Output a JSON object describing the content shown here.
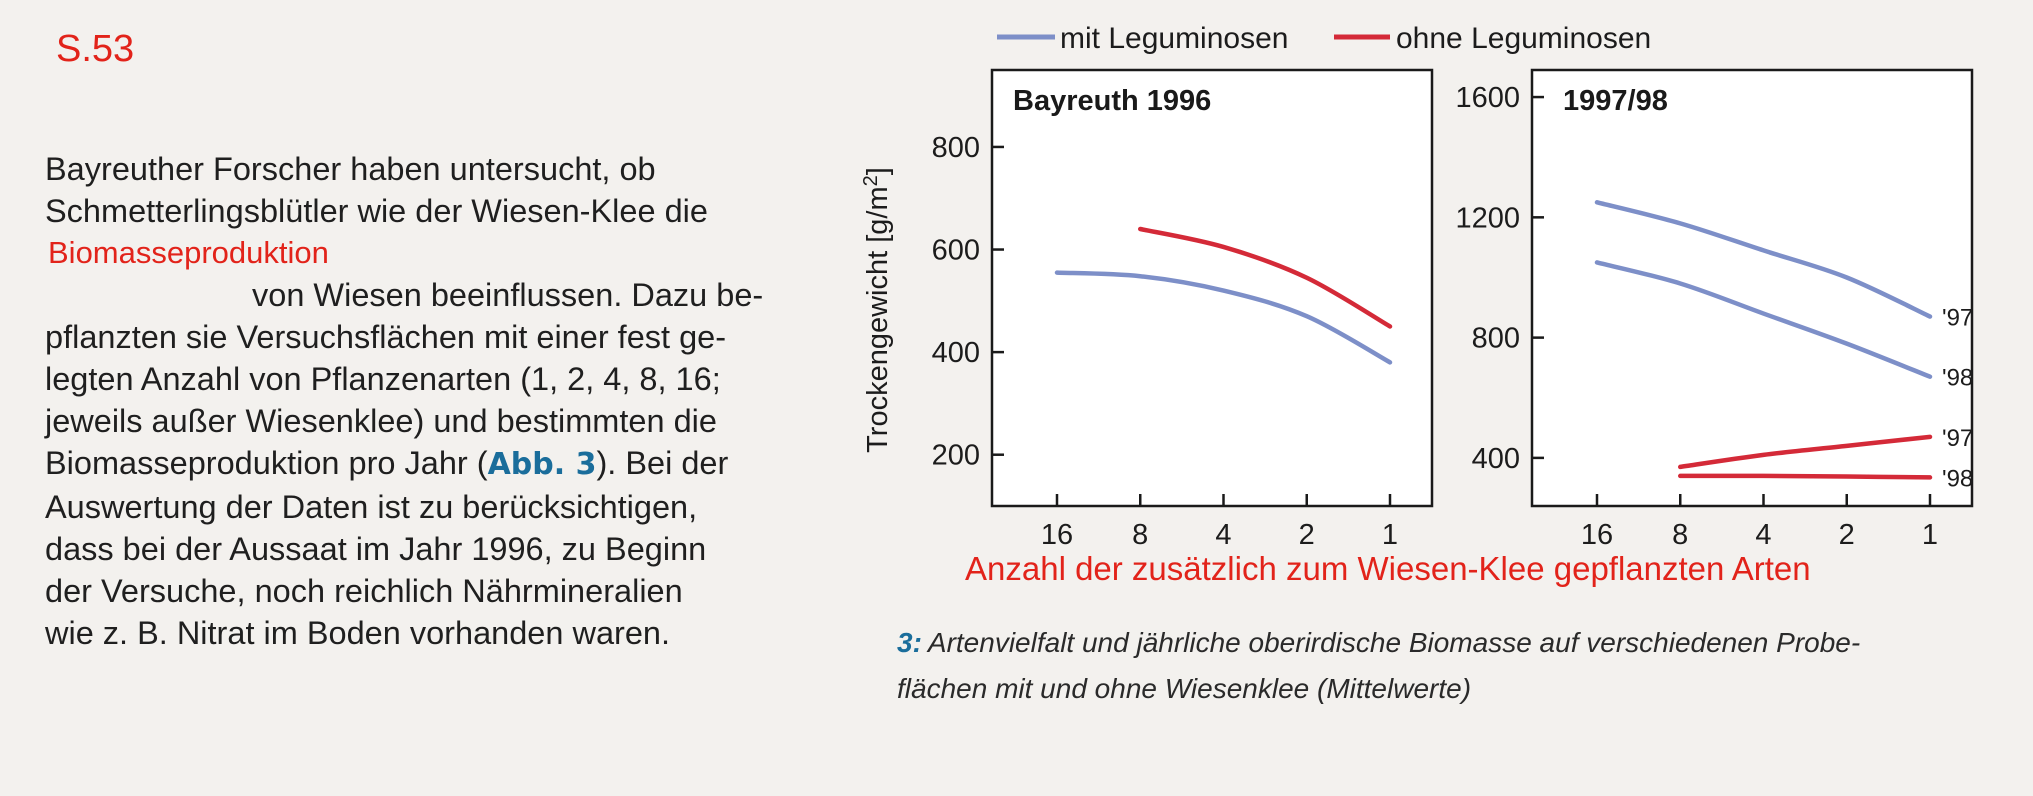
{
  "annotation": {
    "page_ref": "S.53",
    "color": "#e2231a"
  },
  "text_block": {
    "lines": [
      "Bayreuther Forscher haben untersucht, ob",
      "Schmetterlingsblütler wie der Wiesen-Klee die",
      "Biomasseproduktion",
      "von Wiesen beeinflussen. Dazu be-",
      "pflanzten sie Versuchsflächen mit einer fest ge-",
      "legten Anzahl von Pflanzenarten (1, 2, 4, 8, 16;",
      "jeweils außer Wiesenklee) und bestimmten die",
      "Biomasseproduktion pro Jahr (",
      "Abb. 3",
      "). Bei der",
      "Auswertung der Daten ist zu berücksichtigen,",
      "dass bei der Aussaat im Jahr 1996, zu Beginn",
      "der Versuche, noch reichlich Nährmineralien",
      "wie z. B. Nitrat im Boden vorhanden waren."
    ]
  },
  "x_axis_caption": "Anzahl der zusätzlich zum Wiesen-Klee gepflanzten Arten",
  "figure_caption": {
    "number": "3:",
    "text": "Artenvielfalt und jährliche oberirdische Biomasse auf verschiedenen Probe-",
    "text2": "flächen mit und ohne Wiesenklee (Mittelwerte)"
  },
  "colors": {
    "with": "#7d8fc8",
    "without": "#d42a38",
    "accent_red": "#e2231a",
    "fig_blue": "#1a6d9b"
  },
  "chart_data": [
    {
      "type": "line",
      "title": "Bayreuth 1996",
      "ylabel": "Trockengewicht [g/m²]",
      "ylabel_main": "Trockengewicht [g/m",
      "ylabel_sup": "2",
      "ylabel_end": "]",
      "ylim": [
        100,
        950
      ],
      "yticks": [
        200,
        400,
        600,
        800
      ],
      "x_ticks": [
        16,
        8,
        4,
        2,
        1
      ],
      "x_reversed_log": true,
      "legend": [
        {
          "name": "mit Leguminosen",
          "color": "#7d8fc8"
        },
        {
          "name": "ohne Leguminosen",
          "color": "#d42a38"
        }
      ],
      "series": [
        {
          "name": "mit Leguminosen",
          "x": [
            16,
            8,
            4,
            2,
            1
          ],
          "y": [
            555,
            548,
            520,
            470,
            380
          ]
        },
        {
          "name": "ohne Leguminosen",
          "x": [
            8,
            4,
            2,
            1
          ],
          "y": [
            640,
            605,
            545,
            450
          ]
        }
      ]
    },
    {
      "type": "line",
      "title": "1997/98",
      "ylim": [
        240,
        1690
      ],
      "yticks": [
        400,
        800,
        1200,
        1600
      ],
      "x_ticks": [
        16,
        8,
        4,
        2,
        1
      ],
      "x_reversed_log": true,
      "series": [
        {
          "name": "mit Leguminosen",
          "label": "'97",
          "x": [
            16,
            8,
            4,
            2,
            1
          ],
          "y": [
            1250,
            1180,
            1090,
            1000,
            870
          ]
        },
        {
          "name": "mit Leguminosen",
          "label": "'98",
          "x": [
            16,
            8,
            4,
            2,
            1
          ],
          "y": [
            1050,
            980,
            880,
            780,
            670
          ]
        },
        {
          "name": "ohne Leguminosen",
          "label": "'97",
          "x": [
            8,
            4,
            2,
            1
          ],
          "y": [
            370,
            410,
            440,
            470
          ]
        },
        {
          "name": "ohne Leguminosen",
          "label": "'98",
          "x": [
            8,
            4,
            2,
            1
          ],
          "y": [
            340,
            340,
            338,
            335
          ]
        }
      ]
    }
  ]
}
